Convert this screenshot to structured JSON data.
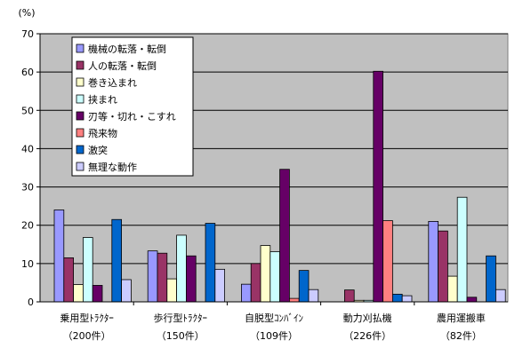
{
  "chart_data": {
    "type": "bar",
    "unit_label": "(%)",
    "ylim": [
      0,
      70
    ],
    "yticks": [
      0,
      10,
      20,
      30,
      40,
      50,
      60,
      70
    ],
    "grid": true,
    "legend_position": "top-left",
    "categories": [
      {
        "name": "乗用型ﾄﾗｸﾀｰ",
        "count": "（200件）"
      },
      {
        "name": "歩行型ﾄﾗｸﾀｰ",
        "count": "（150件）"
      },
      {
        "name": "自脱型ｺﾝﾊﾞｲﾝ",
        "count": "（109件）"
      },
      {
        "name": "動力刈払機",
        "count": "（226件）"
      },
      {
        "name": "農用運搬車",
        "count": "（82件）"
      }
    ],
    "series": [
      {
        "name": "機械の転落・転倒",
        "color": "#9999ff",
        "values": [
          24,
          13.3,
          4.6,
          0,
          21
        ]
      },
      {
        "name": "人の転落・転倒",
        "color": "#993366",
        "values": [
          11.5,
          12.7,
          10,
          3.1,
          18.5
        ]
      },
      {
        "name": "巻き込まれ",
        "color": "#ffffcc",
        "values": [
          4.5,
          6,
          14.7,
          0.4,
          6.7
        ]
      },
      {
        "name": "挟まれ",
        "color": "#ccffff",
        "values": [
          16.8,
          17.4,
          13.1,
          0.4,
          27.3
        ]
      },
      {
        "name": "刃等・切れ・こすれ",
        "color": "#660066",
        "values": [
          4.3,
          12,
          34.6,
          60.2,
          1.2
        ]
      },
      {
        "name": "飛来物",
        "color": "#ff8080",
        "values": [
          0,
          0,
          0.9,
          21.2,
          0
        ]
      },
      {
        "name": "激突",
        "color": "#0066cc",
        "values": [
          21.5,
          20.5,
          8.2,
          2,
          12
        ]
      },
      {
        "name": "無理な動作",
        "color": "#ccccff",
        "values": [
          5.8,
          8.5,
          3.2,
          1.6,
          3.2
        ]
      }
    ]
  }
}
